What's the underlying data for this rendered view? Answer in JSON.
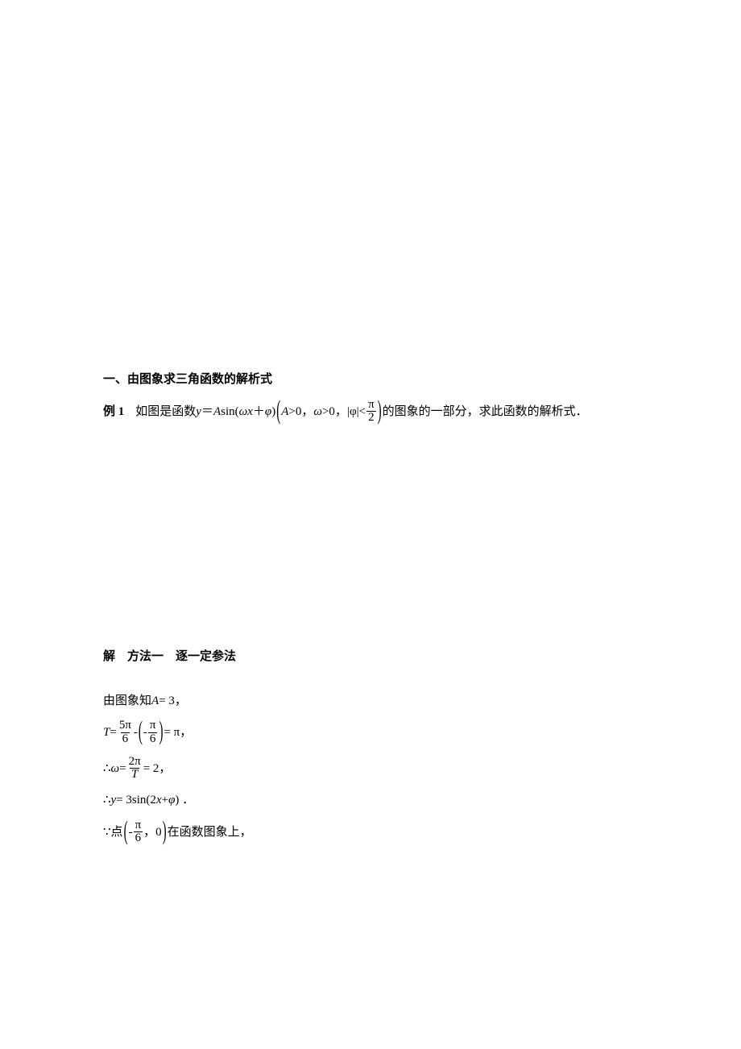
{
  "heading": "一、由图象求三角函数的解析式",
  "example": {
    "label": "例 1",
    "prefix": "如图是函数 ",
    "y_eq": "y",
    "eq_sign": "＝",
    "A": "A",
    "sin": "sin(",
    "omega": "ω",
    "x": "x",
    "plus": "＋",
    "phi": "φ",
    "close": ")",
    "cond_A": "A",
    "cond_A_gt": ">0，",
    "cond_w": "ω",
    "cond_w_gt": ">0，",
    "abs_phi": "|φ|",
    "lt": "<",
    "pi": "π",
    "two": "2",
    "suffix": "的图象的一部分，求此函数的解析式．"
  },
  "solution": {
    "heading": "解　方法一　逐一定参法",
    "line_A": {
      "prefix": "由图象知 ",
      "A": "A",
      "eq": " = 3，"
    },
    "line_T": {
      "T": "T",
      "eq": " = ",
      "five_pi": "5π",
      "six": "6",
      "minus": " - ",
      "neg": " - ",
      "pi": "π",
      "six2": "6",
      "eq_pi": " = π，"
    },
    "line_omega": {
      "therefore": "∴",
      "omega": "ω",
      "eq": " = ",
      "two_pi": "2π",
      "T": "T",
      "eq2": " = 2，"
    },
    "line_y": {
      "therefore": "∴",
      "y": "y",
      "eq": " = 3sin(2",
      "x": "x",
      "plus_phi": " + ",
      "phi": "φ",
      "close": ") ．"
    },
    "line_point": {
      "because": "∵",
      "prefix": "点",
      "neg": " - ",
      "pi": "π",
      "six": "6",
      "comma_zero": "，0",
      "suffix": "在函数图象上，"
    }
  },
  "colors": {
    "text": "#000000",
    "background": "#ffffff"
  }
}
